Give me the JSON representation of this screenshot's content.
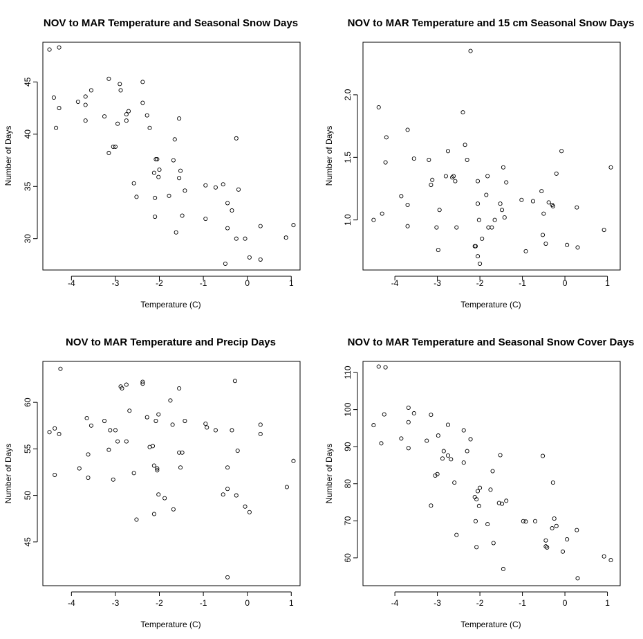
{
  "chart_data": [
    {
      "type": "scatter",
      "title": "NOV to MAR Temperature and Seasonal Snow Days",
      "xlabel": "Temperature (C)",
      "ylabel": "Number of Days",
      "xlim": [
        -4.65,
        1.2
      ],
      "ylim": [
        27.0,
        48.8
      ],
      "xticks": [
        -4,
        -3,
        -2,
        -1,
        0,
        1
      ],
      "yticks": [
        30,
        35,
        40,
        45
      ],
      "grid": false,
      "points": [
        [
          -4.5,
          48.1
        ],
        [
          -4.28,
          48.3
        ],
        [
          -4.4,
          43.5
        ],
        [
          -4.28,
          42.5
        ],
        [
          -4.35,
          40.6
        ],
        [
          -3.85,
          43.1
        ],
        [
          -3.68,
          43.6
        ],
        [
          -3.68,
          42.8
        ],
        [
          -3.55,
          44.2
        ],
        [
          -3.68,
          41.3
        ],
        [
          -3.25,
          41.7
        ],
        [
          -3.15,
          45.3
        ],
        [
          -2.9,
          44.8
        ],
        [
          -2.88,
          44.2
        ],
        [
          -3.05,
          38.8
        ],
        [
          -3.0,
          38.8
        ],
        [
          -3.15,
          38.2
        ],
        [
          -2.95,
          41.0
        ],
        [
          -2.75,
          41.9
        ],
        [
          -2.7,
          42.2
        ],
        [
          -2.75,
          41.3
        ],
        [
          -2.38,
          45.0
        ],
        [
          -2.38,
          43.0
        ],
        [
          -2.28,
          41.8
        ],
        [
          -2.22,
          40.6
        ],
        [
          -2.58,
          35.3
        ],
        [
          -2.52,
          34.0
        ],
        [
          -2.08,
          37.6
        ],
        [
          -2.05,
          37.6
        ],
        [
          -2.12,
          36.3
        ],
        [
          -2.0,
          36.6
        ],
        [
          -2.02,
          35.9
        ],
        [
          -2.1,
          33.9
        ],
        [
          -2.1,
          32.1
        ],
        [
          -1.78,
          34.1
        ],
        [
          -1.65,
          39.5
        ],
        [
          -1.68,
          37.5
        ],
        [
          -1.55,
          41.5
        ],
        [
          -1.52,
          36.5
        ],
        [
          -1.55,
          35.8
        ],
        [
          -1.42,
          34.6
        ],
        [
          -1.48,
          32.2
        ],
        [
          -1.62,
          30.6
        ],
        [
          -0.95,
          35.1
        ],
        [
          -0.72,
          34.9
        ],
        [
          -0.55,
          35.2
        ],
        [
          -0.45,
          33.4
        ],
        [
          -0.35,
          32.7
        ],
        [
          -0.25,
          39.6
        ],
        [
          -0.2,
          34.7
        ],
        [
          -0.95,
          31.9
        ],
        [
          -0.45,
          31.0
        ],
        [
          -0.25,
          30.0
        ],
        [
          -0.05,
          30.0
        ],
        [
          0.05,
          28.2
        ],
        [
          0.3,
          31.2
        ],
        [
          0.3,
          28.0
        ],
        [
          -0.5,
          27.6
        ],
        [
          0.88,
          30.1
        ],
        [
          1.05,
          31.3
        ]
      ]
    },
    {
      "type": "scatter",
      "title": "NOV to MAR Temperature and 15 cm Seasonal Snow Days",
      "xlabel": "Temperature (C)",
      "ylabel": "Number of Days",
      "xlim": [
        -4.75,
        1.3
      ],
      "ylim": [
        0.6,
        2.42
      ],
      "xticks": [
        -4,
        -3,
        -2,
        -1,
        0,
        1
      ],
      "yticks": [
        1.0,
        1.5,
        2.0
      ],
      "ytick_labels": [
        "1.0",
        "1.5",
        "2.0"
      ],
      "grid": false,
      "points": [
        [
          -4.5,
          1.0
        ],
        [
          -4.38,
          1.9
        ],
        [
          -4.3,
          1.05
        ],
        [
          -4.22,
          1.46
        ],
        [
          -4.2,
          1.66
        ],
        [
          -3.85,
          1.19
        ],
        [
          -3.7,
          1.72
        ],
        [
          -3.7,
          1.12
        ],
        [
          -3.7,
          0.95
        ],
        [
          -3.55,
          1.49
        ],
        [
          -3.2,
          1.48
        ],
        [
          -3.15,
          1.28
        ],
        [
          -3.12,
          1.32
        ],
        [
          -2.95,
          1.08
        ],
        [
          -3.02,
          0.94
        ],
        [
          -2.98,
          0.76
        ],
        [
          -2.75,
          1.55
        ],
        [
          -2.8,
          1.35
        ],
        [
          -2.65,
          1.34
        ],
        [
          -2.62,
          1.35
        ],
        [
          -2.58,
          1.31
        ],
        [
          -2.55,
          0.94
        ],
        [
          -2.4,
          1.86
        ],
        [
          -2.35,
          1.6
        ],
        [
          -2.3,
          1.48
        ],
        [
          -2.22,
          2.35
        ],
        [
          -2.12,
          0.79
        ],
        [
          -2.1,
          0.79
        ],
        [
          -2.05,
          1.31
        ],
        [
          -2.05,
          1.13
        ],
        [
          -2.02,
          1.0
        ],
        [
          -2.05,
          0.71
        ],
        [
          -2.0,
          0.65
        ],
        [
          -1.95,
          0.85
        ],
        [
          -1.85,
          1.2
        ],
        [
          -1.82,
          1.35
        ],
        [
          -1.8,
          0.94
        ],
        [
          -1.72,
          0.94
        ],
        [
          -1.65,
          1.0
        ],
        [
          -1.52,
          1.13
        ],
        [
          -1.48,
          1.08
        ],
        [
          -1.45,
          1.42
        ],
        [
          -1.42,
          1.02
        ],
        [
          -1.38,
          1.3
        ],
        [
          -1.02,
          1.16
        ],
        [
          -0.92,
          0.75
        ],
        [
          -0.75,
          1.15
        ],
        [
          -0.55,
          1.23
        ],
        [
          -0.52,
          0.88
        ],
        [
          -0.5,
          1.05
        ],
        [
          -0.45,
          0.81
        ],
        [
          -0.38,
          1.14
        ],
        [
          -0.3,
          1.12
        ],
        [
          -0.28,
          1.11
        ],
        [
          -0.2,
          1.37
        ],
        [
          -0.08,
          1.55
        ],
        [
          0.05,
          0.8
        ],
        [
          0.28,
          1.1
        ],
        [
          0.3,
          0.78
        ],
        [
          0.92,
          0.92
        ],
        [
          1.08,
          1.42
        ]
      ]
    },
    {
      "type": "scatter",
      "title": "NOV to MAR Temperature and Precip Days",
      "xlabel": "Temperature (C)",
      "ylabel": "Number of Days",
      "xlim": [
        -4.65,
        1.2
      ],
      "ylim": [
        40.3,
        64.4
      ],
      "xticks": [
        -4,
        -3,
        -2,
        -1,
        0,
        1
      ],
      "yticks": [
        45,
        50,
        55,
        60
      ],
      "grid": false,
      "points": [
        [
          -4.5,
          56.8
        ],
        [
          -4.38,
          57.2
        ],
        [
          -4.38,
          52.2
        ],
        [
          -4.28,
          56.6
        ],
        [
          -4.25,
          63.6
        ],
        [
          -3.82,
          52.9
        ],
        [
          -3.65,
          58.3
        ],
        [
          -3.62,
          54.4
        ],
        [
          -3.62,
          51.9
        ],
        [
          -3.55,
          57.5
        ],
        [
          -3.25,
          58.0
        ],
        [
          -3.12,
          57.0
        ],
        [
          -3.15,
          54.9
        ],
        [
          -3.05,
          51.7
        ],
        [
          -3.0,
          57.0
        ],
        [
          -2.95,
          55.8
        ],
        [
          -2.88,
          61.7
        ],
        [
          -2.85,
          61.5
        ],
        [
          -2.75,
          61.9
        ],
        [
          -2.75,
          55.8
        ],
        [
          -2.68,
          59.1
        ],
        [
          -2.58,
          52.4
        ],
        [
          -2.52,
          47.4
        ],
        [
          -2.38,
          62.0
        ],
        [
          -2.38,
          62.2
        ],
        [
          -2.28,
          58.4
        ],
        [
          -2.22,
          55.2
        ],
        [
          -2.15,
          55.3
        ],
        [
          -2.12,
          53.2
        ],
        [
          -2.12,
          48.0
        ],
        [
          -2.08,
          58.0
        ],
        [
          -2.02,
          58.7
        ],
        [
          -2.05,
          52.7
        ],
        [
          -2.05,
          52.9
        ],
        [
          -2.02,
          50.1
        ],
        [
          -1.88,
          49.7
        ],
        [
          -1.75,
          60.2
        ],
        [
          -1.7,
          57.6
        ],
        [
          -1.68,
          48.5
        ],
        [
          -1.55,
          61.5
        ],
        [
          -1.55,
          54.6
        ],
        [
          -1.48,
          54.6
        ],
        [
          -1.52,
          53.0
        ],
        [
          -1.42,
          58.0
        ],
        [
          -0.95,
          57.7
        ],
        [
          -0.92,
          57.3
        ],
        [
          -0.72,
          57.0
        ],
        [
          -0.55,
          50.1
        ],
        [
          -0.45,
          53.0
        ],
        [
          -0.45,
          50.7
        ],
        [
          -0.35,
          57.0
        ],
        [
          -0.28,
          62.3
        ],
        [
          -0.22,
          54.8
        ],
        [
          -0.25,
          50.0
        ],
        [
          -0.05,
          48.8
        ],
        [
          0.05,
          48.2
        ],
        [
          0.3,
          57.6
        ],
        [
          0.3,
          56.6
        ],
        [
          -0.45,
          41.2
        ],
        [
          0.9,
          50.9
        ],
        [
          1.05,
          53.7
        ]
      ]
    },
    {
      "type": "scatter",
      "title": "NOV to MAR Temperature and Seasonal Snow Cover Days",
      "xlabel": "Temperature (C)",
      "ylabel": "Number of Days",
      "xlim": [
        -4.75,
        1.3
      ],
      "ylim": [
        52.5,
        113.0
      ],
      "xticks": [
        -4,
        -3,
        -2,
        -1,
        0,
        1
      ],
      "yticks": [
        60,
        70,
        80,
        90,
        100,
        110
      ],
      "grid": false,
      "points": [
        [
          -4.5,
          95.8
        ],
        [
          -4.38,
          111.6
        ],
        [
          -4.32,
          90.9
        ],
        [
          -4.25,
          98.7
        ],
        [
          -4.22,
          111.4
        ],
        [
          -3.85,
          92.2
        ],
        [
          -3.68,
          100.5
        ],
        [
          -3.68,
          96.6
        ],
        [
          -3.68,
          89.6
        ],
        [
          -3.55,
          99.0
        ],
        [
          -3.25,
          91.6
        ],
        [
          -3.15,
          98.6
        ],
        [
          -3.15,
          74.1
        ],
        [
          -3.05,
          82.2
        ],
        [
          -3.0,
          82.6
        ],
        [
          -2.98,
          93.0
        ],
        [
          -2.88,
          86.8
        ],
        [
          -2.85,
          88.8
        ],
        [
          -2.75,
          95.9
        ],
        [
          -2.75,
          87.6
        ],
        [
          -2.68,
          86.6
        ],
        [
          -2.6,
          80.3
        ],
        [
          -2.55,
          66.2
        ],
        [
          -2.38,
          94.4
        ],
        [
          -2.38,
          85.7
        ],
        [
          -2.3,
          88.8
        ],
        [
          -2.22,
          92.0
        ],
        [
          -2.12,
          76.4
        ],
        [
          -2.08,
          75.8
        ],
        [
          -2.05,
          78.0
        ],
        [
          -2.1,
          69.9
        ],
        [
          -2.08,
          62.9
        ],
        [
          -2.02,
          74.0
        ],
        [
          -2.0,
          78.9
        ],
        [
          -1.82,
          69.1
        ],
        [
          -1.75,
          78.4
        ],
        [
          -1.7,
          83.4
        ],
        [
          -1.68,
          64.0
        ],
        [
          -1.55,
          74.8
        ],
        [
          -1.52,
          87.7
        ],
        [
          -1.48,
          74.6
        ],
        [
          -1.45,
          57.0
        ],
        [
          -1.38,
          75.4
        ],
        [
          -0.98,
          69.9
        ],
        [
          -0.92,
          69.8
        ],
        [
          -0.7,
          69.9
        ],
        [
          -0.52,
          87.5
        ],
        [
          -0.45,
          64.7
        ],
        [
          -0.45,
          63.1
        ],
        [
          -0.42,
          62.8
        ],
        [
          -0.3,
          68.0
        ],
        [
          -0.28,
          80.3
        ],
        [
          -0.25,
          70.6
        ],
        [
          -0.2,
          68.6
        ],
        [
          -0.05,
          61.7
        ],
        [
          0.05,
          65.0
        ],
        [
          0.28,
          67.5
        ],
        [
          0.3,
          54.5
        ],
        [
          0.92,
          60.4
        ],
        [
          1.08,
          59.4
        ]
      ]
    }
  ]
}
